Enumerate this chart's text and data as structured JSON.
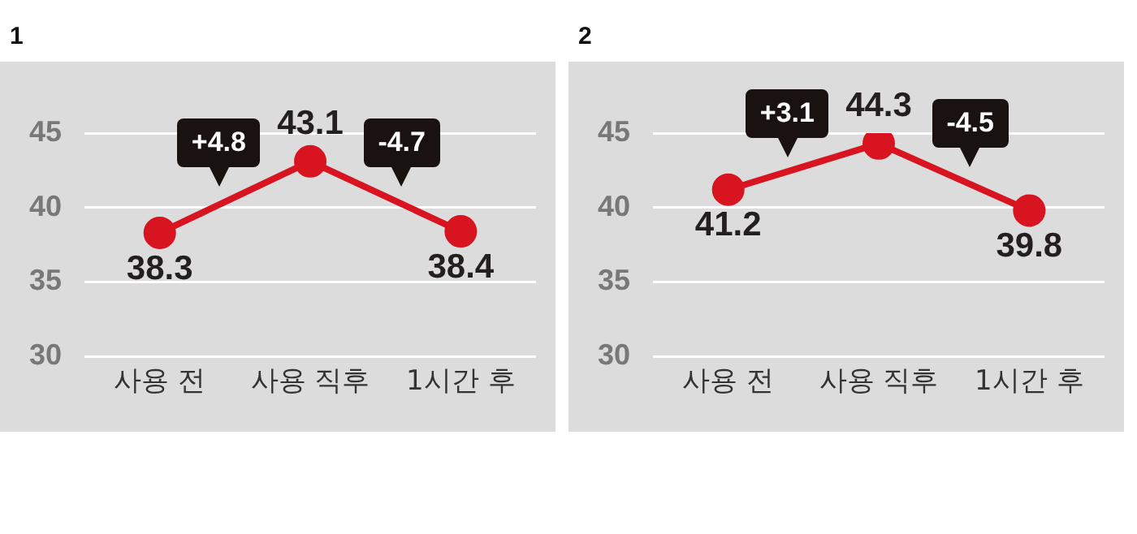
{
  "chart_data": [
    {
      "type": "line",
      "title": "1",
      "categories": [
        "사용 전",
        "사용 직후",
        "1시간 후"
      ],
      "series": [
        {
          "color": "#d7141f",
          "values": [
            38.3,
            43.1,
            38.4
          ]
        }
      ],
      "ylim": [
        30,
        45
      ],
      "yticks": [
        30,
        35,
        40,
        45
      ],
      "grid": "y",
      "legend": false,
      "marker": "circle",
      "line_style": "solid",
      "data_labels": true,
      "annotations": [
        "+4.8",
        "-4.7"
      ]
    },
    {
      "type": "line",
      "title": "2",
      "categories": [
        "사용 전",
        "사용 직후",
        "1시간 후"
      ],
      "series": [
        {
          "color": "#d7141f",
          "values": [
            41.2,
            44.3,
            39.8
          ]
        }
      ],
      "ylim": [
        30,
        45
      ],
      "yticks": [
        30,
        35,
        40,
        45
      ],
      "grid": "y",
      "legend": false,
      "marker": "circle",
      "line_style": "solid",
      "data_labels": true,
      "annotations": [
        "+3.1",
        "-4.5"
      ]
    }
  ]
}
